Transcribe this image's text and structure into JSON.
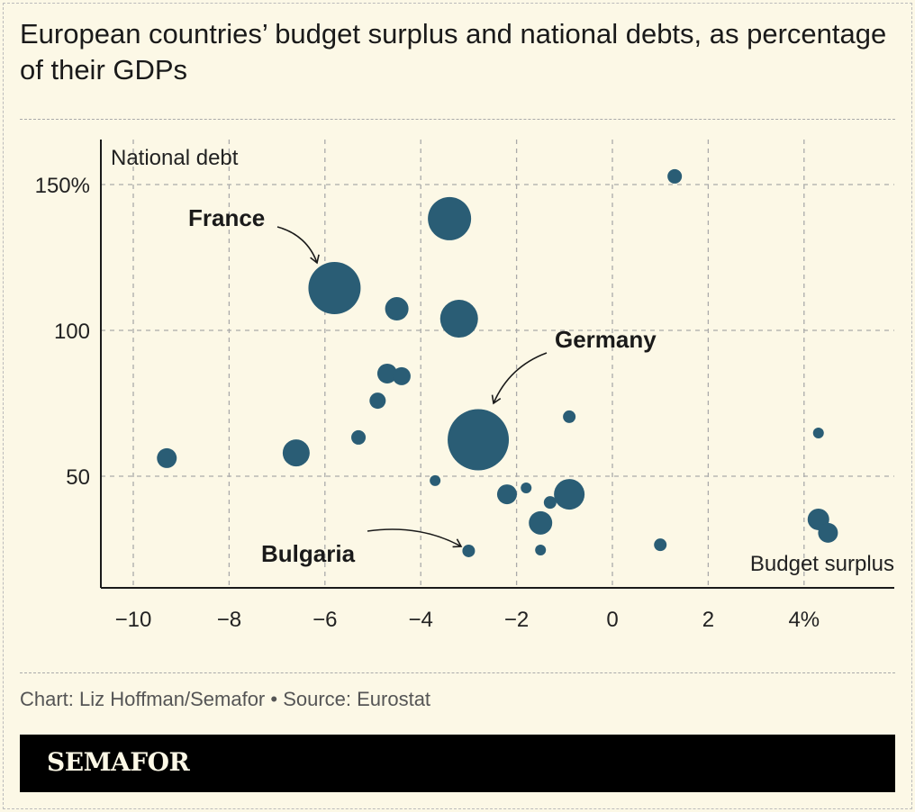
{
  "title": "European countries’ budget surplus and national debts, as percentage of their GDPs",
  "source": "Chart: Liz Hoffman/Semafor • Source: Eurostat",
  "brand": "SEMAFOR",
  "chart_data": {
    "type": "scatter",
    "title": "European countries’ budget surplus and national debts, as percentage of their GDPs",
    "xlabel": "Budget surplus",
    "ylabel": "National debt",
    "xlim": [
      -10.7,
      5.9
    ],
    "ylim": [
      10,
      165
    ],
    "xticks": [
      -10,
      -8,
      -6,
      -4,
      -2,
      0,
      2,
      4
    ],
    "xtick_labels": [
      "−10",
      "−8",
      "−6",
      "−4",
      "−2",
      "0",
      "2",
      "4%"
    ],
    "yticks": [
      50,
      100,
      150
    ],
    "ytick_labels": [
      "50",
      "100",
      "150%"
    ],
    "grid": true,
    "bubble_color": "#2a5d75",
    "points": [
      {
        "x": 1.3,
        "y": 152.8,
        "size": 8
      },
      {
        "x": -3.4,
        "y": 138.3,
        "size": 24
      },
      {
        "x": -5.8,
        "y": 114.5,
        "size": 29,
        "label": "France"
      },
      {
        "x": -4.5,
        "y": 107.4,
        "size": 13
      },
      {
        "x": -3.2,
        "y": 104,
        "size": 21
      },
      {
        "x": -4.7,
        "y": 85.2,
        "size": 11
      },
      {
        "x": -4.4,
        "y": 84.3,
        "size": 10
      },
      {
        "x": -4.9,
        "y": 75.9,
        "size": 9
      },
      {
        "x": -0.9,
        "y": 70.4,
        "size": 7
      },
      {
        "x": -2.8,
        "y": 62.5,
        "size": 34,
        "label": "Germany"
      },
      {
        "x": -5.3,
        "y": 63.3,
        "size": 8
      },
      {
        "x": 4.3,
        "y": 64.8,
        "size": 6
      },
      {
        "x": -9.3,
        "y": 56.2,
        "size": 11
      },
      {
        "x": -6.6,
        "y": 58.0,
        "size": 15
      },
      {
        "x": -3.7,
        "y": 48.5,
        "size": 6
      },
      {
        "x": -1.8,
        "y": 46.0,
        "size": 6
      },
      {
        "x": -2.2,
        "y": 43.8,
        "size": 11
      },
      {
        "x": -1.3,
        "y": 41.0,
        "size": 7
      },
      {
        "x": -0.9,
        "y": 43.8,
        "size": 17
      },
      {
        "x": -1.5,
        "y": 34.0,
        "size": 13
      },
      {
        "x": 4.3,
        "y": 35.2,
        "size": 12
      },
      {
        "x": 4.5,
        "y": 30.6,
        "size": 11
      },
      {
        "x": -3.0,
        "y": 24.4,
        "size": 7,
        "label": "Bulgaria"
      },
      {
        "x": -1.5,
        "y": 24.7,
        "size": 6
      },
      {
        "x": 1.0,
        "y": 26.5,
        "size": 7
      }
    ],
    "annotations": [
      "France",
      "Germany",
      "Bulgaria"
    ]
  }
}
